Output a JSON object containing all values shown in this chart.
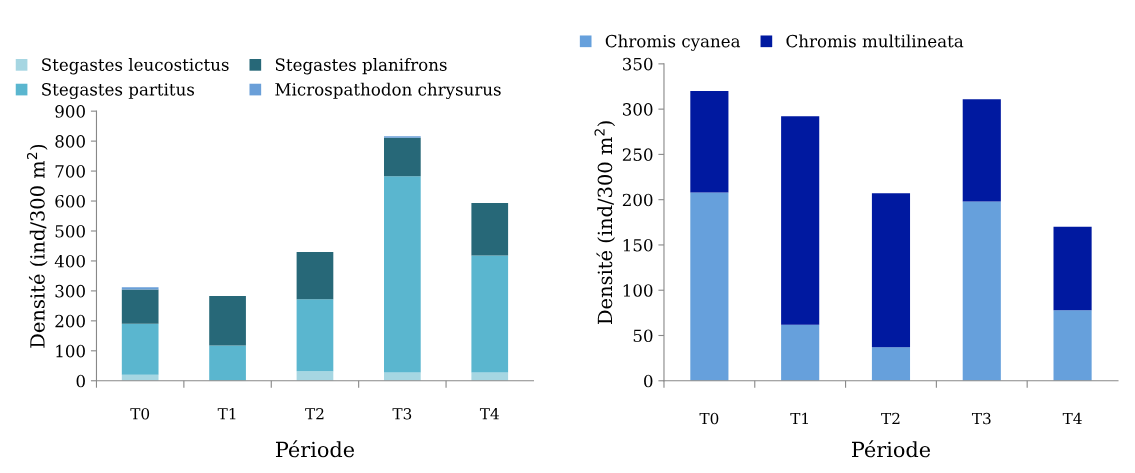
{
  "chart_data": [
    {
      "type": "bar",
      "stacked": true,
      "xlabel": "Période",
      "ylabel": "Densité (ind/300 m$^{2}$)",
      "categories": [
        "T0",
        "T1",
        "T2",
        "T3",
        "T4"
      ],
      "ylim": [
        0,
        900
      ],
      "yticks": [
        0,
        100,
        200,
        300,
        400,
        500,
        600,
        700,
        800,
        900
      ],
      "grid": false,
      "legend": "top",
      "series": [
        {
          "name": "Stegastes leucostictus",
          "color": "#a6d6e2",
          "values": [
            20,
            0,
            32,
            28,
            28
          ]
        },
        {
          "name": "Stegastes partitus",
          "color": "#5ab6cf",
          "values": [
            170,
            118,
            240,
            655,
            390
          ]
        },
        {
          "name": "Stegastes planifrons",
          "color": "#276878",
          "values": [
            115,
            165,
            158,
            128,
            175
          ]
        },
        {
          "name": "Microspathodon chrysurus",
          "color": "#6a9fd8",
          "values": [
            7,
            0,
            0,
            5,
            0
          ]
        }
      ]
    },
    {
      "type": "bar",
      "stacked": true,
      "xlabel": "Période",
      "ylabel": "Densité (ind/300 m$^{2}$)",
      "categories": [
        "T0",
        "T1",
        "T2",
        "T3",
        "T4"
      ],
      "ylim": [
        0,
        350
      ],
      "yticks": [
        0,
        50,
        100,
        150,
        200,
        250,
        300,
        350
      ],
      "grid": false,
      "legend": "top",
      "series": [
        {
          "name": "Chromis cyanea",
          "color": "#66a0dc",
          "values": [
            208,
            62,
            37,
            198,
            78
          ]
        },
        {
          "name": "Chromis multilineata",
          "color": "#0019a0",
          "values": [
            112,
            230,
            170,
            113,
            92
          ]
        }
      ]
    }
  ]
}
